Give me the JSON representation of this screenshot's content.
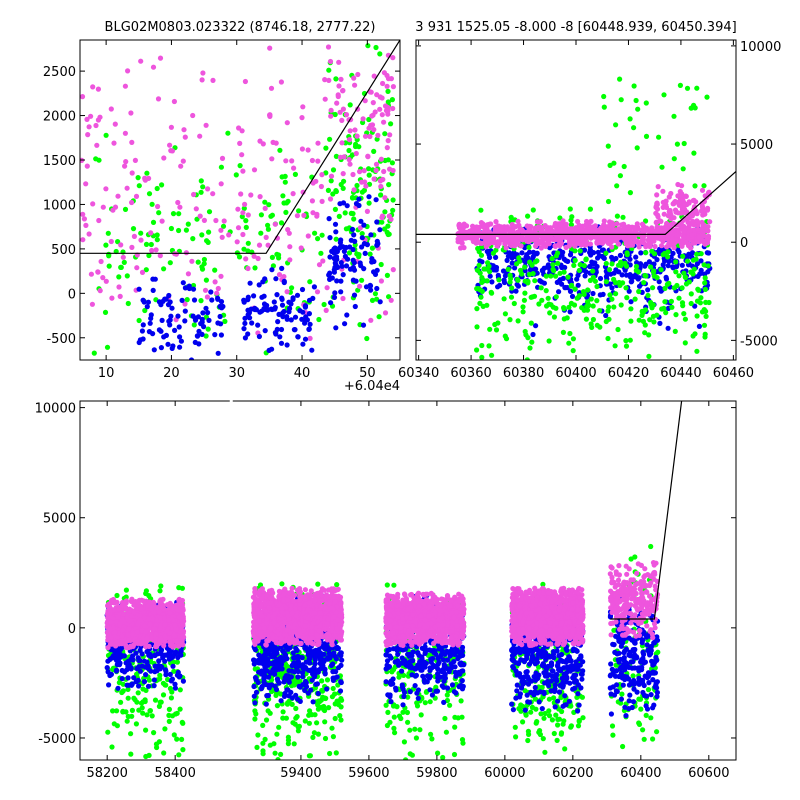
{
  "colors": {
    "blue": "#0000ee",
    "green": "#00ff00",
    "magenta": "#ee55dd",
    "model_line": "#000000"
  },
  "chart_data": [
    {
      "id": "zoom",
      "type": "scatter",
      "title": "BLG02M0803.023322 (8746.18, 2777.22)",
      "xlim": [
        6,
        55
      ],
      "ylim": [
        -750,
        2850
      ],
      "x_offset_label": "+6.04e4",
      "xticks": [
        10,
        20,
        30,
        40,
        50
      ],
      "yticks": [
        -500,
        0,
        500,
        1000,
        1500,
        2000,
        2500
      ],
      "y_axis_side": "left",
      "model_line": {
        "x": [
          6,
          34.5,
          55
        ],
        "y": [
          450,
          450,
          2850
        ]
      },
      "series": [
        {
          "color": "green",
          "regions": [
            [
              8,
              54,
              -750,
              1900,
              200
            ],
            [
              44,
              54,
              0,
              2850,
              90
            ]
          ]
        },
        {
          "color": "magenta",
          "regions": [
            [
              6,
              54,
              -600,
              2850,
              260
            ],
            [
              44,
              54,
              1500,
              2850,
              60
            ]
          ]
        },
        {
          "color": "blue",
          "regions": [
            [
              15,
              28,
              -750,
              200,
              90
            ],
            [
              31,
              42,
              -750,
              300,
              100
            ],
            [
              44,
              52,
              -400,
              1100,
              100
            ]
          ]
        }
      ]
    },
    {
      "id": "mid",
      "type": "scatter",
      "title": "3 931 1525.05 -8.000 -8 [60448.939, 60450.394]",
      "xlim": [
        60339,
        60461
      ],
      "ylim": [
        -6000,
        10300
      ],
      "xticks": [
        60340,
        60360,
        60380,
        60400,
        60420,
        60440,
        60460
      ],
      "yticks": [
        -5000,
        0,
        5000,
        10000
      ],
      "y_axis_side": "right",
      "model_line": {
        "x": [
          60339,
          60434,
          60461
        ],
        "y": [
          400,
          400,
          3600
        ]
      },
      "series": [
        {
          "color": "blue",
          "regions": [
            [
              60362,
              60451,
              -2800,
              800,
              420
            ],
            [
              60380,
              60450,
              -5000,
              -1000,
              50
            ]
          ]
        },
        {
          "color": "green",
          "regions": [
            [
              60362,
              60451,
              -6000,
              2000,
              380
            ],
            [
              60410,
              60450,
              1000,
              10300,
              40
            ]
          ]
        },
        {
          "color": "magenta",
          "regions": [
            [
              60355,
              60451,
              -300,
              1100,
              900
            ],
            [
              60430,
              60451,
              500,
              3000,
              120
            ]
          ]
        }
      ]
    },
    {
      "id": "full",
      "type": "scatter",
      "title": "",
      "xlim": [
        58120,
        60680
      ],
      "ylim": [
        -6000,
        10300
      ],
      "xticks": [
        58200,
        58400,
        59400,
        59600,
        59800,
        60000,
        60200,
        60400,
        60600
      ],
      "x_break": [
        58565,
        59195
      ],
      "yticks": [
        -5000,
        0,
        5000,
        10000
      ],
      "y_axis_side": "left",
      "model_line": {
        "x": [
          60310,
          60440,
          60520
        ],
        "y": [
          400,
          400,
          10300
        ]
      },
      "series": [
        {
          "color": "green",
          "regions": [
            [
              58200,
              58425,
              -6000,
              2000,
              220
            ],
            [
              59260,
              59520,
              -6000,
              2000,
              380
            ],
            [
              59650,
              59880,
              -6000,
              2000,
              200
            ],
            [
              60020,
              60230,
              -6000,
              2000,
              230
            ],
            [
              60310,
              60450,
              -6000,
              4000,
              90
            ]
          ]
        },
        {
          "color": "blue",
          "regions": [
            [
              58200,
              58425,
              -2800,
              1200,
              320
            ],
            [
              59260,
              59520,
              -3500,
              1500,
              500
            ],
            [
              59650,
              59880,
              -3500,
              1500,
              380
            ],
            [
              60020,
              60230,
              -3800,
              1500,
              420
            ],
            [
              60310,
              60450,
              -4000,
              1500,
              220
            ]
          ]
        },
        {
          "color": "magenta",
          "regions": [
            [
              58200,
              58425,
              -900,
              1300,
              1200
            ],
            [
              59260,
              59520,
              -800,
              1800,
              1500
            ],
            [
              59650,
              59880,
              -800,
              1600,
              1200
            ],
            [
              60020,
              60230,
              -800,
              1800,
              1300
            ],
            [
              60310,
              60450,
              -500,
              3000,
              250
            ]
          ]
        }
      ]
    }
  ]
}
